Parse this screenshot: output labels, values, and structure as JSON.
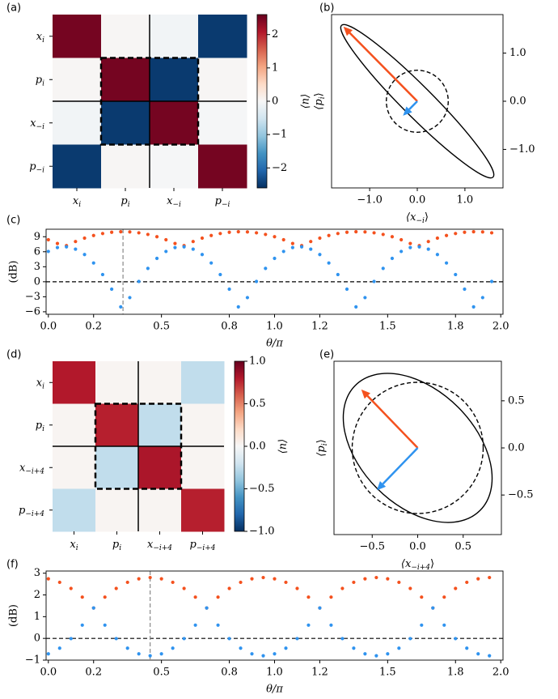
{
  "chart_data": [
    {
      "type": "heatmap",
      "panel": "(a)",
      "labels": [
        {
          "pre": "x",
          "sub": "i"
        },
        {
          "pre": "p",
          "sub": "i"
        },
        {
          "pre": "x",
          "sub": "−i"
        },
        {
          "pre": "p",
          "sub": "−i"
        }
      ],
      "values": [
        [
          2.5,
          0.03,
          -0.08,
          -2.5
        ],
        [
          0.03,
          2.5,
          -2.5,
          0.03
        ],
        [
          -0.08,
          -2.5,
          2.5,
          -0.03
        ],
        [
          -2.5,
          0.03,
          -0.03,
          2.5
        ]
      ],
      "clim": [
        -2.6,
        2.6
      ],
      "cticks": [
        {
          "value": -2,
          "label": "−2"
        },
        {
          "value": -1,
          "label": "−1"
        },
        0,
        1,
        2
      ],
      "colorbar_label": "⟨n⟩",
      "colormap": [
        "#053061",
        "#2166ac",
        "#4393c3",
        "#92c5de",
        "#d1e5f0",
        "#f7f7f7",
        "#fddbc7",
        "#f4a582",
        "#d6604d",
        "#b2182b",
        "#67001f"
      ]
    },
    {
      "type": "ellipse",
      "panel": "(b)",
      "xlabel": {
        "pre": "⟨x",
        "sub": "−i",
        "post": "⟩"
      },
      "ylabel": {
        "pre": "⟨p",
        "sub": "i",
        "post": "⟩"
      },
      "xlim": [
        -1.8,
        1.8
      ],
      "ylim": [
        -1.8,
        1.8
      ],
      "xticks": [
        {
          "value": -1,
          "label": "−1.0"
        },
        {
          "value": 0,
          "label": "0.0"
        },
        {
          "value": 1,
          "label": "1.0"
        }
      ],
      "yticks": [
        {
          "value": -1,
          "label": "−1.0"
        },
        {
          "value": 0,
          "label": "0.0"
        },
        {
          "value": 1,
          "label": "1.0"
        }
      ],
      "ellipses": [
        {
          "cx": 0,
          "cy": 0,
          "rx": 2.25,
          "ry": 0.32,
          "angle": -45,
          "dashed": false
        },
        {
          "cx": 0,
          "cy": 0,
          "rx": 0.65,
          "ry": 0.65,
          "angle": 0,
          "dashed": true
        }
      ],
      "arrows": [
        {
          "x0": 0,
          "y0": 0,
          "x": -1.55,
          "y": 1.55,
          "color": "#f4511e"
        },
        {
          "x0": 0,
          "y0": 0,
          "x": -0.3,
          "y": -0.3,
          "color": "#2f93ef"
        }
      ]
    },
    {
      "type": "line",
      "panel": "(c)",
      "xlabel": "θ/π",
      "ylabel": "(dB)",
      "xlim": [
        -0.01,
        2.01
      ],
      "ylim": [
        -6.5,
        10.5
      ],
      "xticks": [
        {
          "value": 0,
          "label": "0.0"
        },
        0.2,
        0.5,
        0.8,
        {
          "value": 1,
          "label": "1.0"
        },
        1.2,
        1.5,
        1.8,
        {
          "value": 2,
          "label": "2.0"
        }
      ],
      "yticks": [
        {
          "value": -6,
          "label": "−6"
        },
        {
          "value": -3,
          "label": "−3"
        },
        0,
        3,
        6,
        9
      ],
      "vline": 0.33,
      "hline": 0,
      "x": [
        0,
        0.04,
        0.08,
        0.12,
        0.16,
        0.2,
        0.24,
        0.28,
        0.32,
        0.36,
        0.4,
        0.44,
        0.48,
        0.52,
        0.56,
        0.6,
        0.64,
        0.68,
        0.72,
        0.76,
        0.8,
        0.84,
        0.88,
        0.92,
        0.96,
        1.0,
        1.04,
        1.08,
        1.12,
        1.16,
        1.2,
        1.24,
        1.28,
        1.32,
        1.36,
        1.4,
        1.44,
        1.48,
        1.52,
        1.56,
        1.6,
        1.64,
        1.68,
        1.72,
        1.76,
        1.8,
        1.84,
        1.88,
        1.92,
        1.96
      ],
      "series": [
        {
          "color": "#f4511e",
          "values": [
            8.4,
            7.65,
            7.23,
            8.04,
            8.72,
            9.25,
            9.64,
            9.89,
            10.0,
            9.96,
            9.78,
            9.46,
            9.0,
            8.4,
            7.65,
            7.23,
            8.04,
            8.72,
            9.25,
            9.64,
            9.89,
            10.0,
            9.96,
            9.78,
            9.46,
            9.0,
            8.4,
            7.65,
            7.23,
            8.04,
            8.72,
            9.25,
            9.64,
            9.89,
            10.0,
            9.96,
            9.78,
            9.46,
            9.0,
            8.4,
            7.65,
            7.23,
            8.04,
            8.72,
            9.25,
            9.64,
            9.89,
            10.0,
            9.96,
            9.78
          ]
        },
        {
          "color": "#2f93ef",
          "values": [
            6.06,
            6.83,
            6.98,
            6.52,
            5.44,
            3.75,
            1.44,
            -1.48,
            -5.02,
            -3.17,
            0.06,
            2.67,
            4.67,
            6.06,
            6.83,
            6.98,
            6.52,
            5.44,
            3.75,
            1.44,
            -1.48,
            -5.02,
            -3.17,
            0.06,
            2.67,
            4.67,
            6.06,
            6.83,
            6.98,
            6.52,
            5.44,
            3.75,
            1.44,
            -1.48,
            -5.02,
            -3.17,
            0.06,
            2.67,
            4.67,
            6.06,
            6.83,
            6.98,
            6.52,
            5.44,
            3.75,
            1.44,
            -1.48,
            -5.02,
            -3.17,
            0.06
          ]
        }
      ]
    },
    {
      "type": "heatmap",
      "panel": "(d)",
      "labels": [
        {
          "pre": "x",
          "sub": "i"
        },
        {
          "pre": "p",
          "sub": "i"
        },
        {
          "pre": "x",
          "sub": "−i+4"
        },
        {
          "pre": "p",
          "sub": "−i+4"
        }
      ],
      "values": [
        [
          0.8,
          0.02,
          0.02,
          -0.25
        ],
        [
          0.02,
          0.78,
          -0.25,
          0.02
        ],
        [
          0.02,
          -0.25,
          0.82,
          0.02
        ],
        [
          -0.25,
          0.02,
          0.02,
          0.78
        ]
      ],
      "clim": [
        -1,
        1
      ],
      "cticks": [
        {
          "value": -1,
          "label": "−1.0"
        },
        {
          "value": -0.5,
          "label": "−0.5"
        },
        {
          "value": 0,
          "label": "0.0"
        },
        0.5,
        {
          "value": 1,
          "label": "1.0"
        }
      ],
      "colorbar_label": "⟨n⟩",
      "colormap": [
        "#053061",
        "#2166ac",
        "#4393c3",
        "#92c5de",
        "#d1e5f0",
        "#f7f7f7",
        "#fddbc7",
        "#f4a582",
        "#d6604d",
        "#b2182b",
        "#67001f"
      ]
    },
    {
      "type": "ellipse",
      "panel": "(e)",
      "xlabel": {
        "pre": "⟨x",
        "sub": "−i+4",
        "post": "⟩"
      },
      "ylabel": {
        "pre": "⟨p",
        "sub": "i",
        "post": "⟩"
      },
      "xlim": [
        -0.92,
        0.92
      ],
      "ylim": [
        -0.92,
        0.92
      ],
      "xticks": [
        {
          "value": -0.5,
          "label": "−0.5"
        },
        {
          "value": 0,
          "label": "0.0"
        },
        0.5
      ],
      "yticks": [
        {
          "value": -0.5,
          "label": "−0.5"
        },
        {
          "value": 0,
          "label": "0.0"
        },
        0.5
      ],
      "ellipses": [
        {
          "cx": 0,
          "cy": 0,
          "rx": 0.97,
          "ry": 0.63,
          "angle": -45,
          "dashed": false
        },
        {
          "cx": 0,
          "cy": 0,
          "rx": 0.72,
          "ry": 0.72,
          "angle": 0,
          "dashed": true
        }
      ],
      "arrows": [
        {
          "x0": 0,
          "y0": 0,
          "x": -0.62,
          "y": 0.62,
          "color": "#f4511e"
        },
        {
          "x0": 0,
          "y0": 0,
          "x": -0.45,
          "y": -0.45,
          "color": "#2f93ef"
        }
      ]
    },
    {
      "type": "line",
      "panel": "(f)",
      "xlabel": "θ/π",
      "ylabel": "(dB)",
      "xlim": [
        -0.01,
        2.01
      ],
      "ylim": [
        -1,
        3.1
      ],
      "xticks": [
        {
          "value": 0,
          "label": "0.0"
        },
        0.2,
        0.5,
        0.8,
        {
          "value": 1,
          "label": "1.0"
        },
        1.2,
        1.5,
        1.8,
        {
          "value": 2,
          "label": "2.0"
        }
      ],
      "yticks": [
        {
          "value": -1,
          "label": "−1"
        },
        0,
        1,
        2,
        3
      ],
      "vline": 0.45,
      "hline": 0,
      "x": [
        0,
        0.05,
        0.1,
        0.15,
        0.2,
        0.25,
        0.3,
        0.35,
        0.4,
        0.45,
        0.5,
        0.55,
        0.6,
        0.65,
        0.7,
        0.75,
        0.8,
        0.85,
        0.9,
        0.95,
        1.0,
        1.05,
        1.1,
        1.15,
        1.2,
        1.25,
        1.3,
        1.35,
        1.4,
        1.45,
        1.5,
        1.55,
        1.6,
        1.65,
        1.7,
        1.75,
        1.8,
        1.85,
        1.9,
        1.95
      ],
      "series": [
        {
          "color": "#f4511e",
          "values": [
            2.74,
            2.58,
            2.3,
            1.9,
            1.4,
            1.9,
            2.3,
            2.58,
            2.74,
            2.8,
            2.74,
            2.58,
            2.3,
            1.9,
            1.4,
            1.9,
            2.3,
            2.58,
            2.74,
            2.8,
            2.74,
            2.58,
            2.3,
            1.9,
            1.4,
            1.9,
            2.3,
            2.58,
            2.74,
            2.8,
            2.74,
            2.58,
            2.3,
            1.9,
            1.4,
            1.9,
            2.3,
            2.58,
            2.74,
            2.8
          ]
        },
        {
          "color": "#2f93ef",
          "values": [
            -0.71,
            -0.45,
            -0.01,
            0.61,
            1.4,
            0.61,
            -0.01,
            -0.45,
            -0.71,
            -0.8,
            -0.71,
            -0.45,
            -0.01,
            0.61,
            1.4,
            0.61,
            -0.01,
            -0.45,
            -0.71,
            -0.8,
            -0.71,
            -0.45,
            -0.01,
            0.61,
            1.4,
            0.61,
            -0.01,
            -0.45,
            -0.71,
            -0.8,
            -0.71,
            -0.45,
            -0.01,
            0.61,
            1.4,
            0.61,
            -0.01,
            -0.45,
            -0.71,
            -0.8
          ]
        }
      ]
    }
  ]
}
